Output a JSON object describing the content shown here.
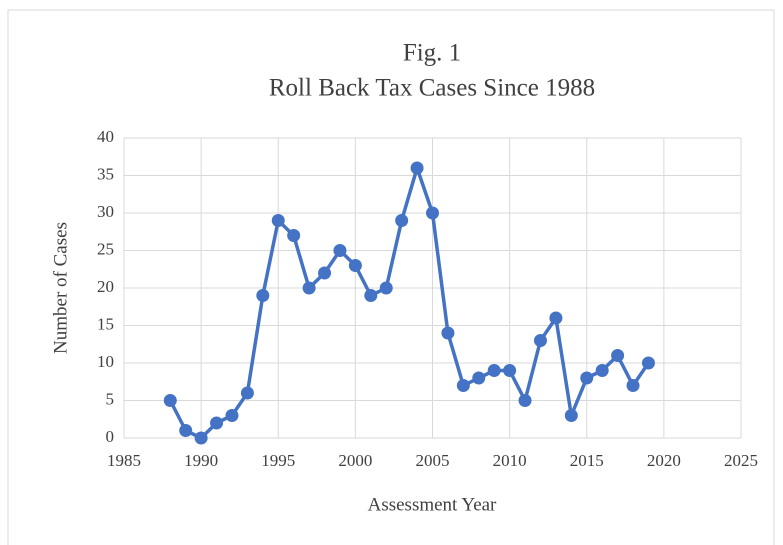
{
  "chart_data": {
    "type": "line",
    "title": "Fig. 1",
    "subtitle": "Roll Back Tax Cases Since 1988",
    "x_label": "Assessment Year",
    "y_label": "Number of Cases",
    "x": [
      1988,
      1989,
      1990,
      1991,
      1992,
      1993,
      1994,
      1995,
      1996,
      1997,
      1998,
      1999,
      2000,
      2001,
      2002,
      2003,
      2004,
      2005,
      2006,
      2007,
      2008,
      2009,
      2010,
      2011,
      2012,
      2013,
      2014,
      2015,
      2016,
      2017,
      2018,
      2019
    ],
    "series": [
      {
        "name": "Number of Cases",
        "color": "#4472c4",
        "values": [
          5,
          1,
          0,
          2,
          3,
          6,
          19,
          29,
          27,
          20,
          22,
          25,
          23,
          19,
          20,
          29,
          36,
          30,
          14,
          7,
          8,
          9,
          9,
          5,
          13,
          16,
          3,
          8,
          9,
          11,
          7,
          10
        ]
      }
    ],
    "xlim": [
      1985,
      2025
    ],
    "xticks": [
      1985,
      1990,
      1995,
      2000,
      2005,
      2010,
      2015,
      2020,
      2025
    ],
    "ylim": [
      0,
      40
    ],
    "yticks": [
      0,
      5,
      10,
      15,
      20,
      25,
      30,
      35,
      40
    ],
    "grid": true
  }
}
